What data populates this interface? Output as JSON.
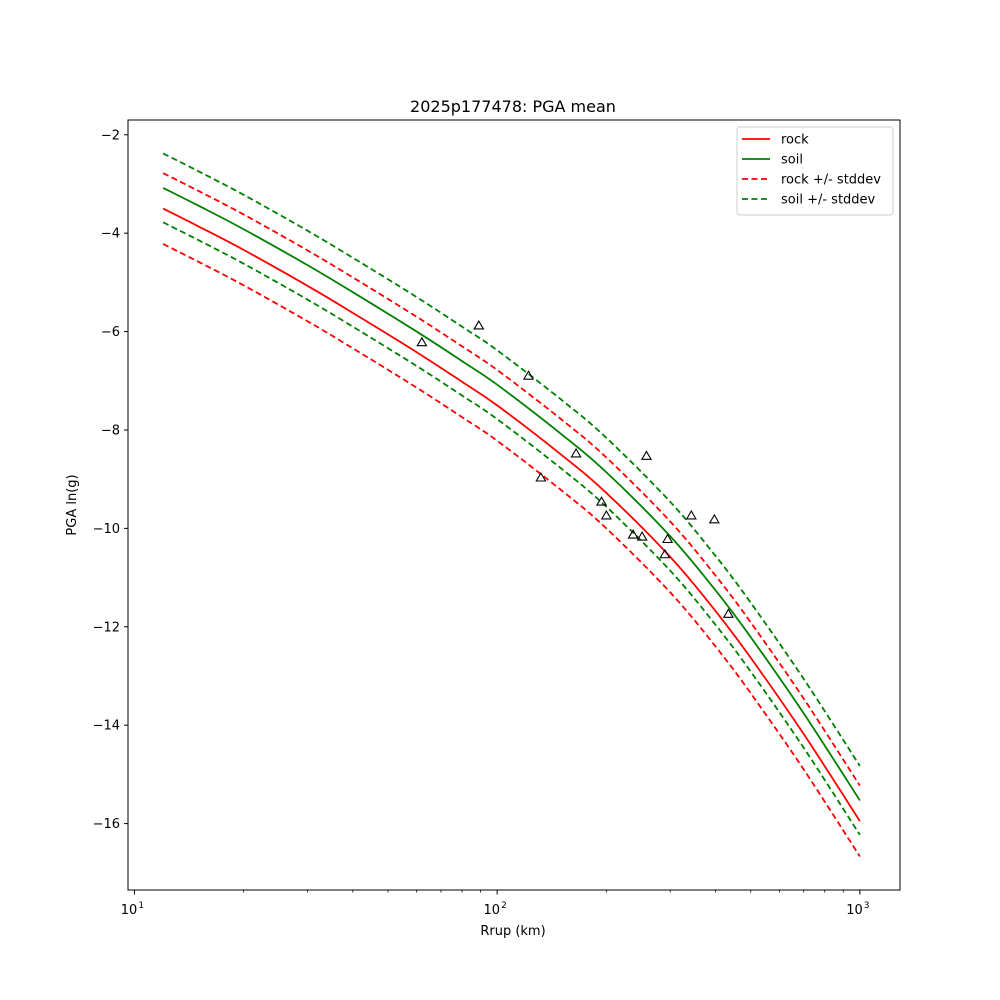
{
  "chart_data": {
    "type": "line",
    "title": "2025p177478: PGA mean",
    "xlabel": "Rrup (km)",
    "ylabel": "PGA ln(g)",
    "xscale": "log",
    "xlim": [
      9.6,
      1290
    ],
    "ylim": [
      -17.35,
      -1.7
    ],
    "x_ticks": [
      {
        "value": 10,
        "label": "10",
        "exp": "1"
      },
      {
        "value": 100,
        "label": "10",
        "exp": "2"
      },
      {
        "value": 1000,
        "label": "10",
        "exp": "3"
      }
    ],
    "y_ticks": [
      {
        "value": -2,
        "label": "−2"
      },
      {
        "value": -4,
        "label": "−4"
      },
      {
        "value": -6,
        "label": "−6"
      },
      {
        "value": -8,
        "label": "−8"
      },
      {
        "value": -10,
        "label": "−10"
      },
      {
        "value": -12,
        "label": "−12"
      },
      {
        "value": -14,
        "label": "−14"
      },
      {
        "value": -16,
        "label": "−16"
      }
    ],
    "grid": false,
    "legend_position": "top-right",
    "legend": [
      {
        "label": "rock",
        "color": "#ff0000",
        "style": "solid"
      },
      {
        "label": "soil",
        "color": "#008000",
        "style": "solid"
      },
      {
        "label": "rock +/- stddev",
        "color": "#ff0000",
        "style": "dashed"
      },
      {
        "label": "soil +/- stddev",
        "color": "#008000",
        "style": "dashed"
      }
    ],
    "x": [
      12,
      15,
      20,
      30,
      40,
      60,
      80,
      100,
      150,
      200,
      300,
      400,
      500,
      700,
      1000
    ],
    "series": [
      {
        "name": "rock",
        "color": "#ff0000",
        "style": "solid",
        "values": [
          -3.5,
          -3.86,
          -4.34,
          -5.07,
          -5.62,
          -6.42,
          -7.02,
          -7.5,
          -8.5,
          -9.28,
          -10.58,
          -11.68,
          -12.63,
          -14.18,
          -15.95
        ]
      },
      {
        "name": "soil",
        "color": "#008000",
        "style": "solid",
        "values": [
          -3.08,
          -3.44,
          -3.92,
          -4.65,
          -5.2,
          -6.0,
          -6.6,
          -7.08,
          -8.08,
          -8.86,
          -10.16,
          -11.26,
          -12.21,
          -13.76,
          -15.53
        ]
      },
      {
        "name": "rock +/- stddev",
        "color": "#ff0000",
        "style": "dashed",
        "values": [
          -2.78,
          -3.14,
          -3.62,
          -4.35,
          -4.9,
          -5.7,
          -6.3,
          -6.78,
          -7.78,
          -8.56,
          -9.86,
          -10.96,
          -11.91,
          -13.46,
          -15.23
        ]
      },
      {
        "name": "rock +/- stddev",
        "color": "#ff0000",
        "style": "dashed",
        "values": [
          -4.22,
          -4.58,
          -5.06,
          -5.79,
          -6.34,
          -7.14,
          -7.74,
          -8.22,
          -9.22,
          -10.0,
          -11.3,
          -12.4,
          -13.35,
          -14.9,
          -16.67
        ]
      },
      {
        "name": "soil +/- stddev",
        "color": "#008000",
        "style": "dashed",
        "values": [
          -2.38,
          -2.74,
          -3.22,
          -3.95,
          -4.5,
          -5.3,
          -5.9,
          -6.38,
          -7.38,
          -8.16,
          -9.46,
          -10.56,
          -11.51,
          -13.06,
          -14.83
        ]
      },
      {
        "name": "soil +/- stddev",
        "color": "#008000",
        "style": "dashed",
        "values": [
          -3.78,
          -4.14,
          -4.62,
          -5.35,
          -5.9,
          -6.7,
          -7.3,
          -7.78,
          -8.78,
          -9.56,
          -10.86,
          -11.96,
          -12.91,
          -14.46,
          -16.23
        ]
      }
    ],
    "observations": {
      "marker": "triangle",
      "color": "#000000",
      "points": [
        {
          "x": 62,
          "y": -6.22
        },
        {
          "x": 89,
          "y": -5.88
        },
        {
          "x": 122,
          "y": -6.9
        },
        {
          "x": 132,
          "y": -8.97
        },
        {
          "x": 165,
          "y": -8.48
        },
        {
          "x": 194,
          "y": -9.46
        },
        {
          "x": 200,
          "y": -9.74
        },
        {
          "x": 237,
          "y": -10.13
        },
        {
          "x": 251,
          "y": -10.17
        },
        {
          "x": 258,
          "y": -8.53
        },
        {
          "x": 290,
          "y": -10.53
        },
        {
          "x": 295,
          "y": -10.22
        },
        {
          "x": 343,
          "y": -9.74
        },
        {
          "x": 397,
          "y": -9.82
        },
        {
          "x": 434,
          "y": -11.74
        }
      ]
    }
  }
}
